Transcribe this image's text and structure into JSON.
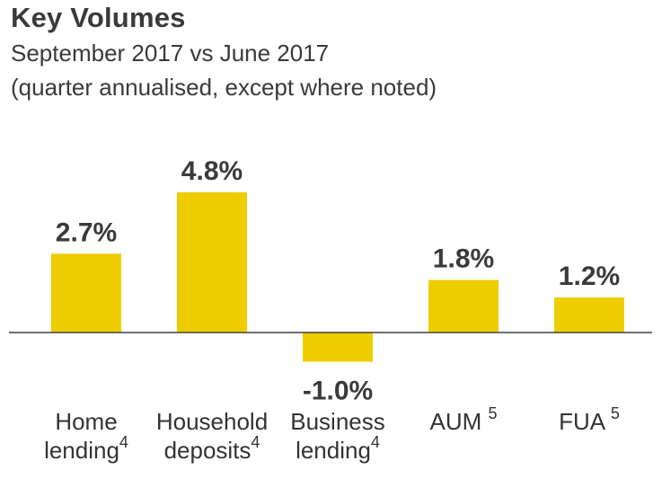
{
  "header": {
    "title": "Key Volumes",
    "subtitle": "September 2017 vs June 2017",
    "note": "(quarter annualised, except where noted)"
  },
  "colors": {
    "bar": "#eecd00",
    "axis": "#404040",
    "label": "#333333"
  },
  "chart_data": {
    "type": "bar",
    "categories": [
      "Home lending",
      "Household deposits",
      "Business lending",
      "AUM",
      "FUA"
    ],
    "category_lines": [
      {
        "line1": "Home",
        "line2": "lending",
        "sup": "4"
      },
      {
        "line1": "Household",
        "line2": "deposits",
        "sup": "4"
      },
      {
        "line1": "Business",
        "line2": "lending",
        "sup": "4"
      },
      {
        "line1": "AUM",
        "line2": "",
        "sup": "5"
      },
      {
        "line1": "FUA",
        "line2": "",
        "sup": "5"
      }
    ],
    "values": [
      2.7,
      4.8,
      -1.0,
      1.8,
      1.2
    ],
    "data_labels": [
      "2.7%",
      "4.8%",
      "-1.0%",
      "1.8%",
      "1.2%"
    ],
    "title": "Key Volumes",
    "subtitle": "September 2017 vs June 2017",
    "xlabel": "",
    "ylabel": "",
    "ylim": [
      -1.0,
      4.8
    ],
    "grid": false,
    "legend": "none",
    "baseline": 0
  }
}
